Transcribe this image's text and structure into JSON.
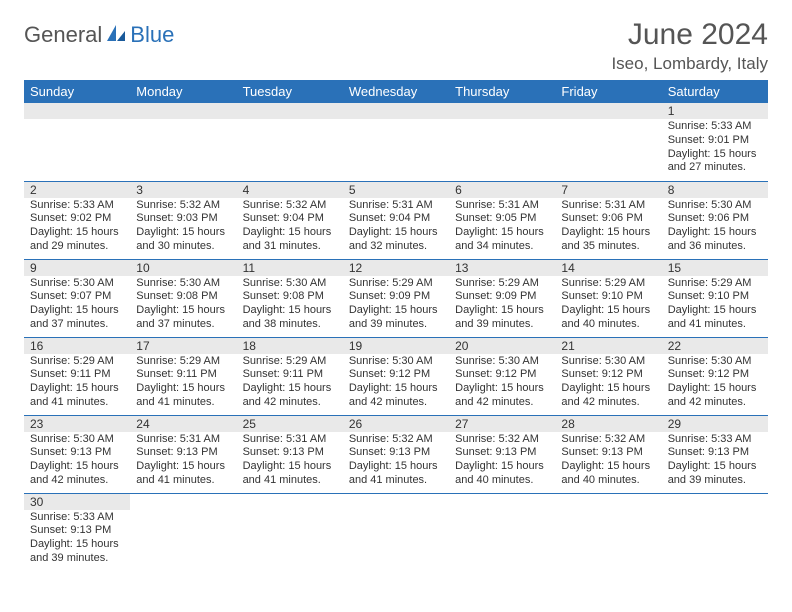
{
  "logo": {
    "part1": "General",
    "part2": "Blue"
  },
  "title": "June 2024",
  "subtitle": "Iseo, Lombardy, Italy",
  "header_bg": "#2a71b8",
  "border_color": "#2a71b8",
  "daynum_bg": "#e9e9e9",
  "weekdays": [
    "Sunday",
    "Monday",
    "Tuesday",
    "Wednesday",
    "Thursday",
    "Friday",
    "Saturday"
  ],
  "weeks": [
    [
      null,
      null,
      null,
      null,
      null,
      null,
      {
        "d": "1",
        "sr": "Sunrise: 5:33 AM",
        "ss": "Sunset: 9:01 PM",
        "dl1": "Daylight: 15 hours",
        "dl2": "and 27 minutes."
      }
    ],
    [
      {
        "d": "2",
        "sr": "Sunrise: 5:33 AM",
        "ss": "Sunset: 9:02 PM",
        "dl1": "Daylight: 15 hours",
        "dl2": "and 29 minutes."
      },
      {
        "d": "3",
        "sr": "Sunrise: 5:32 AM",
        "ss": "Sunset: 9:03 PM",
        "dl1": "Daylight: 15 hours",
        "dl2": "and 30 minutes."
      },
      {
        "d": "4",
        "sr": "Sunrise: 5:32 AM",
        "ss": "Sunset: 9:04 PM",
        "dl1": "Daylight: 15 hours",
        "dl2": "and 31 minutes."
      },
      {
        "d": "5",
        "sr": "Sunrise: 5:31 AM",
        "ss": "Sunset: 9:04 PM",
        "dl1": "Daylight: 15 hours",
        "dl2": "and 32 minutes."
      },
      {
        "d": "6",
        "sr": "Sunrise: 5:31 AM",
        "ss": "Sunset: 9:05 PM",
        "dl1": "Daylight: 15 hours",
        "dl2": "and 34 minutes."
      },
      {
        "d": "7",
        "sr": "Sunrise: 5:31 AM",
        "ss": "Sunset: 9:06 PM",
        "dl1": "Daylight: 15 hours",
        "dl2": "and 35 minutes."
      },
      {
        "d": "8",
        "sr": "Sunrise: 5:30 AM",
        "ss": "Sunset: 9:06 PM",
        "dl1": "Daylight: 15 hours",
        "dl2": "and 36 minutes."
      }
    ],
    [
      {
        "d": "9",
        "sr": "Sunrise: 5:30 AM",
        "ss": "Sunset: 9:07 PM",
        "dl1": "Daylight: 15 hours",
        "dl2": "and 37 minutes."
      },
      {
        "d": "10",
        "sr": "Sunrise: 5:30 AM",
        "ss": "Sunset: 9:08 PM",
        "dl1": "Daylight: 15 hours",
        "dl2": "and 37 minutes."
      },
      {
        "d": "11",
        "sr": "Sunrise: 5:30 AM",
        "ss": "Sunset: 9:08 PM",
        "dl1": "Daylight: 15 hours",
        "dl2": "and 38 minutes."
      },
      {
        "d": "12",
        "sr": "Sunrise: 5:29 AM",
        "ss": "Sunset: 9:09 PM",
        "dl1": "Daylight: 15 hours",
        "dl2": "and 39 minutes."
      },
      {
        "d": "13",
        "sr": "Sunrise: 5:29 AM",
        "ss": "Sunset: 9:09 PM",
        "dl1": "Daylight: 15 hours",
        "dl2": "and 39 minutes."
      },
      {
        "d": "14",
        "sr": "Sunrise: 5:29 AM",
        "ss": "Sunset: 9:10 PM",
        "dl1": "Daylight: 15 hours",
        "dl2": "and 40 minutes."
      },
      {
        "d": "15",
        "sr": "Sunrise: 5:29 AM",
        "ss": "Sunset: 9:10 PM",
        "dl1": "Daylight: 15 hours",
        "dl2": "and 41 minutes."
      }
    ],
    [
      {
        "d": "16",
        "sr": "Sunrise: 5:29 AM",
        "ss": "Sunset: 9:11 PM",
        "dl1": "Daylight: 15 hours",
        "dl2": "and 41 minutes."
      },
      {
        "d": "17",
        "sr": "Sunrise: 5:29 AM",
        "ss": "Sunset: 9:11 PM",
        "dl1": "Daylight: 15 hours",
        "dl2": "and 41 minutes."
      },
      {
        "d": "18",
        "sr": "Sunrise: 5:29 AM",
        "ss": "Sunset: 9:11 PM",
        "dl1": "Daylight: 15 hours",
        "dl2": "and 42 minutes."
      },
      {
        "d": "19",
        "sr": "Sunrise: 5:30 AM",
        "ss": "Sunset: 9:12 PM",
        "dl1": "Daylight: 15 hours",
        "dl2": "and 42 minutes."
      },
      {
        "d": "20",
        "sr": "Sunrise: 5:30 AM",
        "ss": "Sunset: 9:12 PM",
        "dl1": "Daylight: 15 hours",
        "dl2": "and 42 minutes."
      },
      {
        "d": "21",
        "sr": "Sunrise: 5:30 AM",
        "ss": "Sunset: 9:12 PM",
        "dl1": "Daylight: 15 hours",
        "dl2": "and 42 minutes."
      },
      {
        "d": "22",
        "sr": "Sunrise: 5:30 AM",
        "ss": "Sunset: 9:12 PM",
        "dl1": "Daylight: 15 hours",
        "dl2": "and 42 minutes."
      }
    ],
    [
      {
        "d": "23",
        "sr": "Sunrise: 5:30 AM",
        "ss": "Sunset: 9:13 PM",
        "dl1": "Daylight: 15 hours",
        "dl2": "and 42 minutes."
      },
      {
        "d": "24",
        "sr": "Sunrise: 5:31 AM",
        "ss": "Sunset: 9:13 PM",
        "dl1": "Daylight: 15 hours",
        "dl2": "and 41 minutes."
      },
      {
        "d": "25",
        "sr": "Sunrise: 5:31 AM",
        "ss": "Sunset: 9:13 PM",
        "dl1": "Daylight: 15 hours",
        "dl2": "and 41 minutes."
      },
      {
        "d": "26",
        "sr": "Sunrise: 5:32 AM",
        "ss": "Sunset: 9:13 PM",
        "dl1": "Daylight: 15 hours",
        "dl2": "and 41 minutes."
      },
      {
        "d": "27",
        "sr": "Sunrise: 5:32 AM",
        "ss": "Sunset: 9:13 PM",
        "dl1": "Daylight: 15 hours",
        "dl2": "and 40 minutes."
      },
      {
        "d": "28",
        "sr": "Sunrise: 5:32 AM",
        "ss": "Sunset: 9:13 PM",
        "dl1": "Daylight: 15 hours",
        "dl2": "and 40 minutes."
      },
      {
        "d": "29",
        "sr": "Sunrise: 5:33 AM",
        "ss": "Sunset: 9:13 PM",
        "dl1": "Daylight: 15 hours",
        "dl2": "and 39 minutes."
      }
    ],
    [
      {
        "d": "30",
        "sr": "Sunrise: 5:33 AM",
        "ss": "Sunset: 9:13 PM",
        "dl1": "Daylight: 15 hours",
        "dl2": "and 39 minutes."
      },
      null,
      null,
      null,
      null,
      null,
      null
    ]
  ]
}
